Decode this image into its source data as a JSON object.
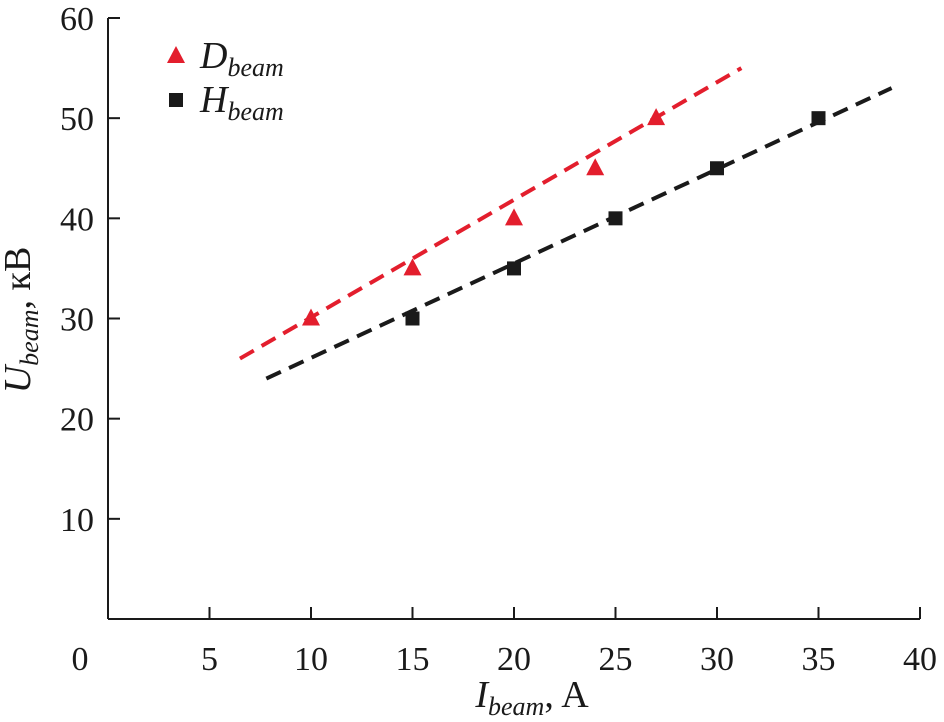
{
  "chart_data": {
    "type": "scatter",
    "title": "",
    "xlabel": {
      "main": "I",
      "sub": "beam",
      "unit": ", A"
    },
    "ylabel": {
      "main": "U",
      "sub": "beam",
      "unit": ", кВ"
    },
    "xlim": [
      0,
      40
    ],
    "ylim": [
      0,
      60
    ],
    "x_ticks": [
      0,
      5,
      10,
      15,
      20,
      25,
      30,
      35,
      40
    ],
    "y_ticks": [
      10,
      20,
      30,
      40,
      50,
      60
    ],
    "grid": false,
    "legend_position": "top-left",
    "series": [
      {
        "legend_main": "D",
        "legend_sub": "beam",
        "marker": "triangle",
        "color": "#e31e2d",
        "x": [
          10,
          15,
          20,
          24,
          27
        ],
        "y": [
          30,
          35,
          40,
          45,
          50
        ],
        "fit_line": {
          "x": [
            6.5,
            31.2
          ],
          "y": [
            26,
            55
          ]
        }
      },
      {
        "legend_main": "H",
        "legend_sub": "beam",
        "marker": "square",
        "color": "#1a1a1a",
        "x": [
          15,
          20,
          25,
          30,
          35
        ],
        "y": [
          30,
          35,
          40,
          45,
          50
        ],
        "fit_line": {
          "x": [
            7.8,
            38.6
          ],
          "y": [
            24,
            53
          ]
        }
      }
    ]
  }
}
